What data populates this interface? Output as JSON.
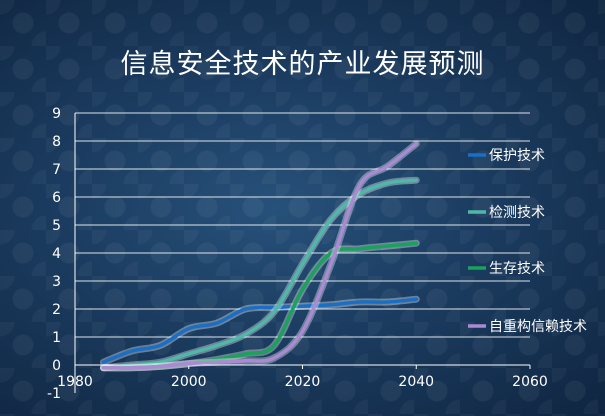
{
  "chart_data": {
    "type": "line",
    "title": "信息安全技术的产业发展预测",
    "xlim": [
      1980,
      2060
    ],
    "ylim": [
      -1,
      9
    ],
    "x_ticks": [
      "1980",
      "2000",
      "2020",
      "2040",
      "2060"
    ],
    "y_ticks": [
      "-1",
      "0",
      "1",
      "2",
      "3",
      "4",
      "5",
      "6",
      "7",
      "8",
      "9"
    ],
    "grid": "horizontal",
    "legend_position": "right",
    "x_axis_at_y": 0,
    "series": [
      {
        "name": "保护技术",
        "color": "#1a6fc4",
        "points": [
          [
            1985,
            0.1
          ],
          [
            1990,
            0.5
          ],
          [
            1995,
            0.7
          ],
          [
            2000,
            1.3
          ],
          [
            2005,
            1.5
          ],
          [
            2010,
            2.0
          ],
          [
            2015,
            2.05
          ],
          [
            2020,
            2.1
          ],
          [
            2025,
            2.15
          ],
          [
            2030,
            2.25
          ],
          [
            2035,
            2.25
          ],
          [
            2040,
            2.35
          ]
        ]
      },
      {
        "name": "检测技术",
        "color": "#4fb8a8",
        "points": [
          [
            1985,
            -0.1
          ],
          [
            1990,
            0.0
          ],
          [
            1995,
            0.1
          ],
          [
            2000,
            0.4
          ],
          [
            2005,
            0.7
          ],
          [
            2010,
            1.1
          ],
          [
            2015,
            1.9
          ],
          [
            2020,
            3.6
          ],
          [
            2025,
            5.2
          ],
          [
            2030,
            6.1
          ],
          [
            2035,
            6.5
          ],
          [
            2040,
            6.6
          ]
        ]
      },
      {
        "name": "生存技术",
        "color": "#1aa15a",
        "points": [
          [
            1985,
            -0.1
          ],
          [
            1990,
            -0.1
          ],
          [
            1995,
            -0.05
          ],
          [
            2000,
            0.05
          ],
          [
            2005,
            0.2
          ],
          [
            2010,
            0.4
          ],
          [
            2015,
            0.7
          ],
          [
            2020,
            2.7
          ],
          [
            2025,
            4.0
          ],
          [
            2030,
            4.15
          ],
          [
            2035,
            4.25
          ],
          [
            2040,
            4.35
          ]
        ]
      },
      {
        "name": "自重构信赖技术",
        "color": "#a98ad3",
        "points": [
          [
            1985,
            -0.1
          ],
          [
            1990,
            -0.1
          ],
          [
            1995,
            -0.05
          ],
          [
            2000,
            0.05
          ],
          [
            2005,
            0.1
          ],
          [
            2010,
            0.15
          ],
          [
            2015,
            0.25
          ],
          [
            2020,
            1.2
          ],
          [
            2025,
            3.6
          ],
          [
            2030,
            6.4
          ],
          [
            2035,
            7.1
          ],
          [
            2040,
            7.9
          ]
        ]
      }
    ]
  }
}
